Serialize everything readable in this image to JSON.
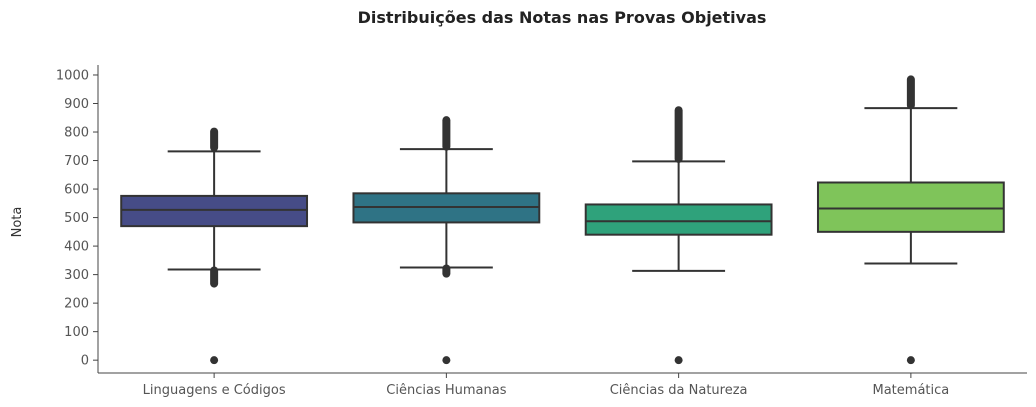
{
  "chart_data": {
    "type": "boxplot",
    "title": "Distribuições das Notas nas Provas Objetivas",
    "xlabel": "",
    "ylabel": "Nota",
    "ylim": [
      -45,
      1035
    ],
    "yticks": [
      0,
      100,
      200,
      300,
      400,
      500,
      600,
      700,
      800,
      900,
      1000
    ],
    "grid": false,
    "categories": [
      "Linguagens e Códigos",
      "Ciências Humanas",
      "Ciências da Natureza",
      "Matemática"
    ],
    "colors": [
      "#464c87",
      "#2f7385",
      "#2fa27b",
      "#7fc45a"
    ],
    "boxes": [
      {
        "whisker_low": 318,
        "q1": 470,
        "median": 527,
        "q3": 576,
        "whisker_high": 732,
        "outliers_low": [
          0,
          265,
          318
        ],
        "outliers_high": [
          742,
          805
        ]
      },
      {
        "whisker_low": 325,
        "q1": 483,
        "median": 537,
        "q3": 585,
        "whisker_high": 740,
        "outliers_low": [
          0,
          300,
          325
        ],
        "outliers_high": [
          745,
          845
        ]
      },
      {
        "whisker_low": 313,
        "q1": 440,
        "median": 487,
        "q3": 546,
        "whisker_high": 697,
        "outliers_low": [
          0
        ],
        "outliers_high": [
          702,
          880
        ]
      },
      {
        "whisker_low": 339,
        "q1": 450,
        "median": 532,
        "q3": 623,
        "whisker_high": 884,
        "outliers_low": [
          0
        ],
        "outliers_high": [
          890,
          988
        ]
      }
    ]
  }
}
